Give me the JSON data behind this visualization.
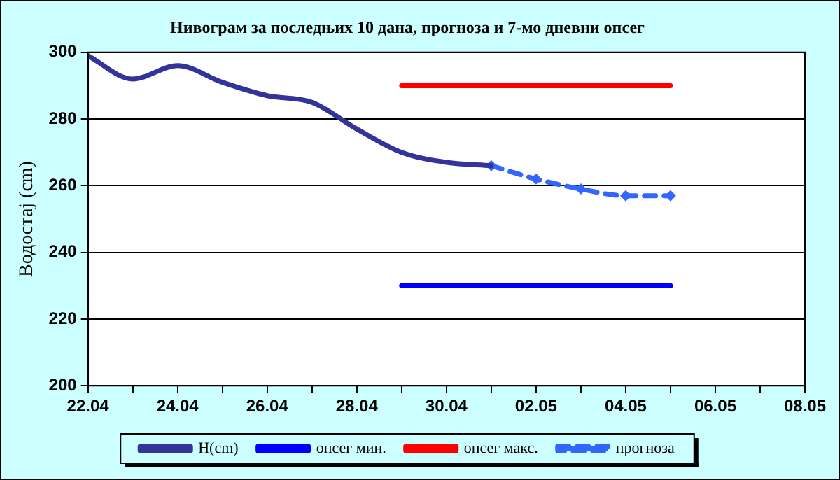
{
  "chart_data": {
    "type": "line",
    "title": "Нивограм за последњих 10 дана, прогноза и 7-мо дневни опсег",
    "ylabel": "Водостај (cm)",
    "xlim": [
      "--04-22",
      "--05-08"
    ],
    "xticks": [
      {
        "value": "--04-22",
        "label": "22.04"
      },
      {
        "value": "--04-23",
        "label": null
      },
      {
        "value": "--04-24",
        "label": "24.04"
      },
      {
        "value": "--04-25",
        "label": null
      },
      {
        "value": "--04-26",
        "label": "26.04"
      },
      {
        "value": "--04-27",
        "label": null
      },
      {
        "value": "--04-28",
        "label": "28.04"
      },
      {
        "value": "--04-29",
        "label": null
      },
      {
        "value": "--04-30",
        "label": "30.04"
      },
      {
        "value": "--05-01",
        "label": null
      },
      {
        "value": "--05-02",
        "label": "02.05"
      },
      {
        "value": "--05-03",
        "label": null
      },
      {
        "value": "--05-04",
        "label": "04.05"
      },
      {
        "value": "--05-05",
        "label": null
      },
      {
        "value": "--05-06",
        "label": "06.05"
      },
      {
        "value": "--05-07",
        "label": null
      },
      {
        "value": "--05-08",
        "label": "08.05"
      }
    ],
    "ylim": [
      200,
      300
    ],
    "yticks": [
      200,
      220,
      240,
      260,
      280,
      300
    ],
    "grid": "y",
    "legend": "bottom",
    "series": [
      {
        "name": "H(cm)",
        "color": "#333399",
        "marker": "none",
        "line_style": "solid",
        "x": [
          "--04-22",
          "--04-23",
          "--04-24",
          "--04-25",
          "--04-26",
          "--04-27",
          "--04-28",
          "--04-29",
          "--04-30",
          "--05-01"
        ],
        "values": [
          299,
          292,
          296,
          291,
          287,
          285,
          277,
          270,
          267,
          266
        ]
      },
      {
        "name": "опсег мин.",
        "color": "#0000ff",
        "marker": "none",
        "line_style": "solid",
        "x": [
          "--04-29",
          "--05-05"
        ],
        "values": [
          230,
          230
        ]
      },
      {
        "name": "опсег макс.",
        "color": "#ff0000",
        "marker": "none",
        "line_style": "solid",
        "x": [
          "--04-29",
          "--05-05"
        ],
        "values": [
          290,
          290
        ]
      },
      {
        "name": "прогноза",
        "color": "#3366ff",
        "marker": "diamond",
        "line_style": "dashed",
        "x": [
          "--05-01",
          "--05-02",
          "--05-03",
          "--05-04",
          "--05-05"
        ],
        "values": [
          266,
          262,
          259,
          257,
          257
        ]
      }
    ]
  }
}
